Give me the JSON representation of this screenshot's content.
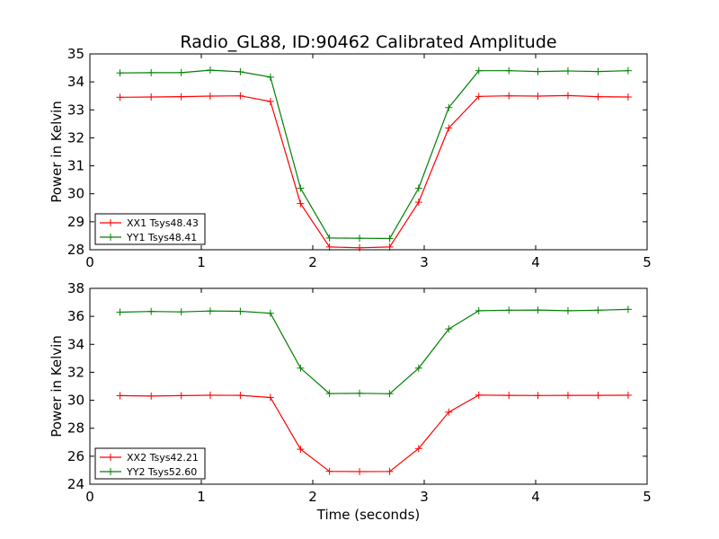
{
  "chart_data": [
    {
      "type": "line",
      "title": "Radio_GL88, ID:90462 Calibrated Amplitude",
      "xlabel": "",
      "ylabel": "Power in Kelvin",
      "xlim": [
        0,
        5
      ],
      "ylim": [
        28,
        35
      ],
      "xticks": [
        "0",
        "1",
        "2",
        "3",
        "4",
        "5"
      ],
      "yticks": [
        "28",
        "29",
        "30",
        "31",
        "32",
        "33",
        "34",
        "35"
      ],
      "grid": false,
      "legend_position": "lower-left",
      "x": [
        0.27,
        0.55,
        0.82,
        1.08,
        1.35,
        1.62,
        1.89,
        2.15,
        2.42,
        2.69,
        2.95,
        3.22,
        3.49,
        3.76,
        4.02,
        4.29,
        4.56,
        4.83
      ],
      "series": [
        {
          "name": "XX1 Tsys48.43",
          "color": "#ff0000",
          "marker": "plus",
          "values": [
            33.45,
            33.46,
            33.47,
            33.49,
            33.5,
            33.3,
            29.65,
            28.1,
            28.07,
            28.1,
            29.7,
            32.35,
            33.48,
            33.5,
            33.49,
            33.51,
            33.47,
            33.46
          ]
        },
        {
          "name": "YY1 Tsys48.41",
          "color": "#008000",
          "marker": "plus",
          "values": [
            34.32,
            34.33,
            34.33,
            34.42,
            34.36,
            34.17,
            30.2,
            28.42,
            28.41,
            28.4,
            30.2,
            33.08,
            34.4,
            34.4,
            34.37,
            34.39,
            34.37,
            34.4
          ]
        }
      ]
    },
    {
      "type": "line",
      "title": "",
      "xlabel": "Time (seconds)",
      "ylabel": "Power in Kelvin",
      "xlim": [
        0,
        5
      ],
      "ylim": [
        24,
        38
      ],
      "xticks": [
        "0",
        "1",
        "2",
        "3",
        "4",
        "5"
      ],
      "yticks": [
        "24",
        "26",
        "28",
        "30",
        "32",
        "34",
        "36",
        "38"
      ],
      "grid": false,
      "legend_position": "lower-left",
      "x": [
        0.27,
        0.55,
        0.82,
        1.08,
        1.35,
        1.62,
        1.89,
        2.15,
        2.42,
        2.69,
        2.95,
        3.22,
        3.49,
        3.76,
        4.02,
        4.29,
        4.56,
        4.83
      ],
      "series": [
        {
          "name": "XX2 Tsys42.21",
          "color": "#ff0000",
          "marker": "plus",
          "values": [
            30.33,
            30.3,
            30.33,
            30.36,
            30.35,
            30.2,
            26.5,
            24.92,
            24.9,
            24.91,
            26.55,
            29.15,
            30.37,
            30.35,
            30.34,
            30.35,
            30.35,
            30.36
          ]
        },
        {
          "name": "YY2 Tsys52.60",
          "color": "#008000",
          "marker": "plus",
          "values": [
            36.3,
            36.35,
            36.32,
            36.38,
            36.36,
            36.22,
            32.3,
            30.48,
            30.5,
            30.47,
            32.3,
            35.1,
            36.4,
            36.44,
            36.45,
            36.4,
            36.44,
            36.5
          ]
        }
      ]
    }
  ]
}
